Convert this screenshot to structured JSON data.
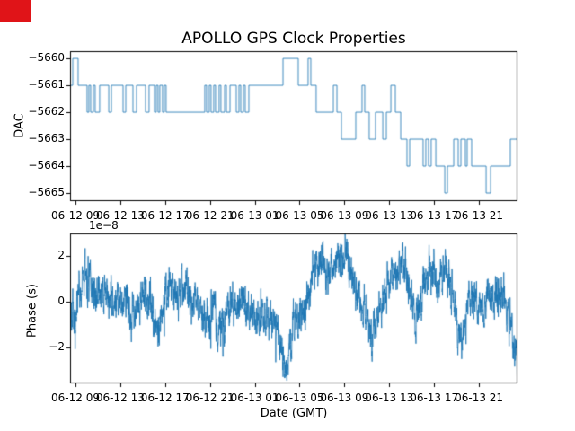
{
  "figure": {
    "title": "APOLLO GPS Clock Properties",
    "xlabel": "Date (GMT)",
    "background_color": "#ffffff",
    "spine_color": "#000000",
    "annotation_box_color": "#e01418"
  },
  "chart_data": [
    {
      "type": "line",
      "subtype": "step",
      "ylabel": "DAC",
      "line_color": "#1f77b4",
      "grid": false,
      "legend": "none",
      "x_unit": "hours since 06-12 00:00 GMT",
      "xlim": [
        8.52,
        48.44
      ],
      "ylim": [
        -5665.3,
        -5659.73
      ],
      "yticks": [
        -5660,
        -5661,
        -5662,
        -5663,
        -5664,
        -5665
      ],
      "ytick_labels": [
        "−5660",
        "−5661",
        "−5662",
        "−5663",
        "−5664",
        "−5665"
      ],
      "xticks": [
        9,
        13,
        17,
        21,
        25,
        29,
        33,
        37,
        41,
        45
      ],
      "xtick_labels": [
        "06-12 09",
        "06-12 13",
        "06-12 17",
        "06-12 21",
        "06-13 01",
        "06-13 05",
        "06-13 09",
        "06-13 13",
        "06-13 17",
        "06-13 21"
      ],
      "steps": [
        [
          8.52,
          -5661
        ],
        [
          8.76,
          -5660
        ],
        [
          9.24,
          -5661
        ],
        [
          10.04,
          -5662
        ],
        [
          10.2,
          -5661
        ],
        [
          10.36,
          -5662
        ],
        [
          10.6,
          -5661
        ],
        [
          10.76,
          -5662
        ],
        [
          11.16,
          -5661
        ],
        [
          11.97,
          -5662
        ],
        [
          12.21,
          -5661
        ],
        [
          13.25,
          -5662
        ],
        [
          13.49,
          -5661
        ],
        [
          14.13,
          -5662
        ],
        [
          14.45,
          -5661
        ],
        [
          15.25,
          -5662
        ],
        [
          15.57,
          -5661
        ],
        [
          16.05,
          -5662
        ],
        [
          16.21,
          -5661
        ],
        [
          16.37,
          -5662
        ],
        [
          16.53,
          -5661
        ],
        [
          16.77,
          -5662
        ],
        [
          16.93,
          -5661
        ],
        [
          17.09,
          -5662
        ],
        [
          20.54,
          -5661
        ],
        [
          20.7,
          -5662
        ],
        [
          20.94,
          -5661
        ],
        [
          21.1,
          -5662
        ],
        [
          21.34,
          -5661
        ],
        [
          21.5,
          -5662
        ],
        [
          21.82,
          -5661
        ],
        [
          21.98,
          -5662
        ],
        [
          22.31,
          -5661
        ],
        [
          22.47,
          -5662
        ],
        [
          22.79,
          -5661
        ],
        [
          23.35,
          -5662
        ],
        [
          23.59,
          -5661
        ],
        [
          23.75,
          -5662
        ],
        [
          23.99,
          -5661
        ],
        [
          24.15,
          -5662
        ],
        [
          24.47,
          -5661
        ],
        [
          27.52,
          -5660
        ],
        [
          28.88,
          -5661
        ],
        [
          29.76,
          -5660
        ],
        [
          30.0,
          -5661
        ],
        [
          30.48,
          -5662
        ],
        [
          32.01,
          -5661
        ],
        [
          32.33,
          -5662
        ],
        [
          32.73,
          -5663
        ],
        [
          34.01,
          -5662
        ],
        [
          34.57,
          -5661
        ],
        [
          34.81,
          -5662
        ],
        [
          35.21,
          -5663
        ],
        [
          35.77,
          -5662
        ],
        [
          36.42,
          -5663
        ],
        [
          36.74,
          -5662
        ],
        [
          37.14,
          -5661
        ],
        [
          37.54,
          -5662
        ],
        [
          38.02,
          -5663
        ],
        [
          38.58,
          -5664
        ],
        [
          38.82,
          -5663
        ],
        [
          40.02,
          -5664
        ],
        [
          40.26,
          -5663
        ],
        [
          40.5,
          -5664
        ],
        [
          40.74,
          -5663
        ],
        [
          41.15,
          -5664
        ],
        [
          41.95,
          -5665
        ],
        [
          42.19,
          -5664
        ],
        [
          42.75,
          -5663
        ],
        [
          43.15,
          -5664
        ],
        [
          43.39,
          -5663
        ],
        [
          43.79,
          -5664
        ],
        [
          43.95,
          -5663
        ],
        [
          44.35,
          -5664
        ],
        [
          45.64,
          -5665
        ],
        [
          46.04,
          -5664
        ],
        [
          47.8,
          -5663
        ]
      ]
    },
    {
      "type": "line",
      "ylabel": "Phase (s)",
      "xlabel": "Date (GMT)",
      "offset_text": "1e−8",
      "y_scale_factor": "1e-8",
      "line_color": "#1f77b4",
      "grid": false,
      "legend": "none",
      "x_unit": "hours since 06-12 00:00 GMT",
      "xlim": [
        8.52,
        48.44
      ],
      "ylim": [
        -3.57,
        2.98
      ],
      "yticks": [
        2,
        0,
        -2
      ],
      "ytick_labels": [
        "2",
        "0",
        "−2"
      ],
      "xticks": [
        9,
        13,
        17,
        21,
        25,
        29,
        33,
        37,
        41,
        45
      ],
      "xtick_labels": [
        "06-12 09",
        "06-12 13",
        "06-12 17",
        "06-12 21",
        "06-13 01",
        "06-13 05",
        "06-13 09",
        "06-13 13",
        "06-13 17",
        "06-13 21"
      ],
      "noise_sigma": 0.44,
      "seed": 7,
      "trend": [
        [
          8.52,
          -0.1
        ],
        [
          8.92,
          -1.2
        ],
        [
          9.32,
          0.5
        ],
        [
          9.88,
          1.2
        ],
        [
          10.52,
          0.55
        ],
        [
          11.24,
          0.4
        ],
        [
          11.97,
          0.3
        ],
        [
          12.69,
          0.15
        ],
        [
          13.49,
          0.1
        ],
        [
          14.05,
          -0.6
        ],
        [
          14.69,
          0.15
        ],
        [
          15.09,
          0.5
        ],
        [
          15.65,
          0.0
        ],
        [
          16.37,
          -1.3
        ],
        [
          16.93,
          0.2
        ],
        [
          17.66,
          0.5
        ],
        [
          18.3,
          0.3
        ],
        [
          18.94,
          0.7
        ],
        [
          19.5,
          0.1
        ],
        [
          20.06,
          -0.3
        ],
        [
          20.54,
          -0.8
        ],
        [
          21.34,
          -0.2
        ],
        [
          21.9,
          -1.3
        ],
        [
          22.47,
          -0.4
        ],
        [
          23.27,
          -0.2
        ],
        [
          23.91,
          0.2
        ],
        [
          24.55,
          -0.5
        ],
        [
          25.11,
          -0.8
        ],
        [
          25.91,
          -0.6
        ],
        [
          26.71,
          -0.9
        ],
        [
          27.35,
          -1.8
        ],
        [
          27.84,
          -2.9
        ],
        [
          28.32,
          -1.2
        ],
        [
          28.72,
          -1.0
        ],
        [
          29.36,
          -0.3
        ],
        [
          29.92,
          0.6
        ],
        [
          30.48,
          1.5
        ],
        [
          31.12,
          1.5
        ],
        [
          31.6,
          0.9
        ],
        [
          32.17,
          1.6
        ],
        [
          33.13,
          2.2
        ],
        [
          33.93,
          0.9
        ],
        [
          34.73,
          -0.4
        ],
        [
          35.37,
          -1.4
        ],
        [
          35.93,
          -0.9
        ],
        [
          36.58,
          0.4
        ],
        [
          37.14,
          1.0
        ],
        [
          37.78,
          1.6
        ],
        [
          38.5,
          1.3
        ],
        [
          38.98,
          0.1
        ],
        [
          39.38,
          -0.9
        ],
        [
          39.94,
          0.6
        ],
        [
          40.58,
          1.6
        ],
        [
          41.31,
          0.7
        ],
        [
          41.95,
          1.3
        ],
        [
          42.59,
          0.4
        ],
        [
          43.07,
          -1.2
        ],
        [
          43.47,
          -1.7
        ],
        [
          44.03,
          0.1
        ],
        [
          44.59,
          0.3
        ],
        [
          45.07,
          -0.4
        ],
        [
          45.55,
          0.0
        ],
        [
          46.2,
          0.5
        ],
        [
          46.84,
          0.4
        ],
        [
          47.32,
          0.2
        ],
        [
          47.8,
          -0.8
        ],
        [
          48.2,
          -2.3
        ],
        [
          48.44,
          -1.9
        ]
      ]
    }
  ]
}
